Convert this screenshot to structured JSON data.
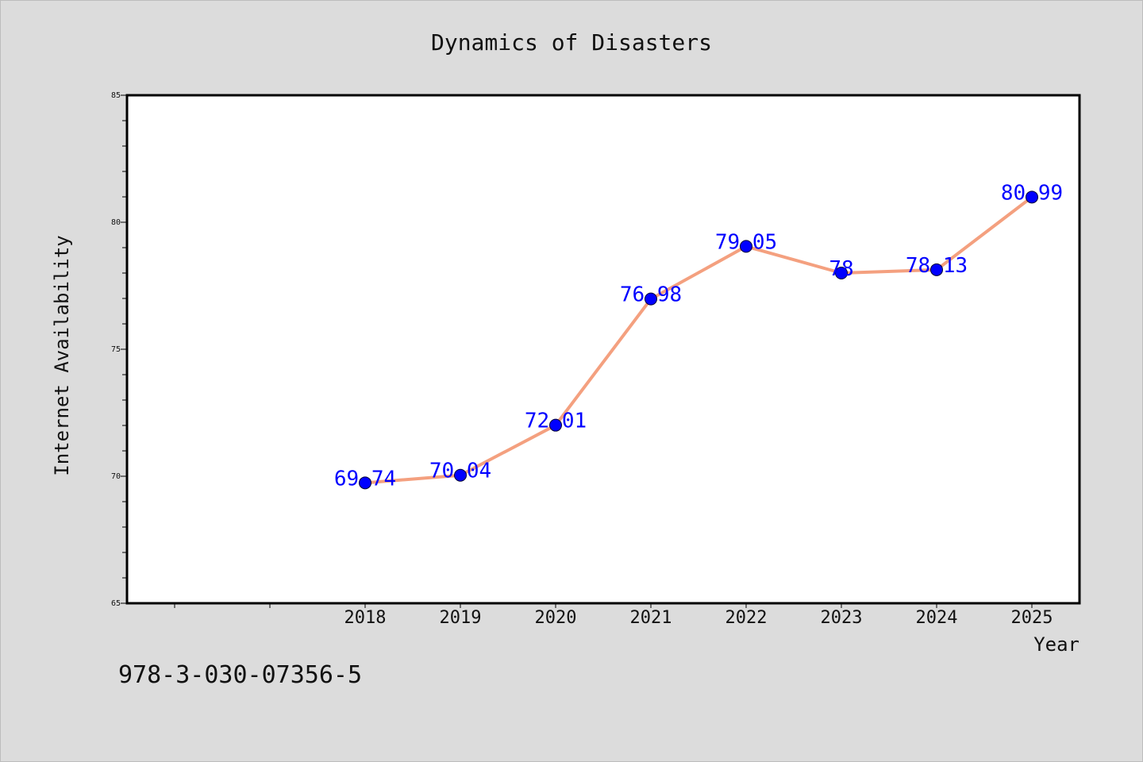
{
  "chart_data": {
    "type": "line",
    "title": "Dynamics of Disasters",
    "xlabel": "Year",
    "ylabel": "Internet Availability",
    "categories": [
      "2018",
      "2019",
      "2020",
      "2021",
      "2022",
      "2023",
      "2024",
      "2025"
    ],
    "series": [
      {
        "values": [
          69.74,
          70.04,
          72.01,
          76.98,
          79.05,
          78,
          78.13,
          80.99
        ],
        "labels": [
          "69.74",
          "70.04",
          "72.01",
          "76.98",
          "79.05",
          "78",
          "78.13",
          "80.99"
        ]
      }
    ],
    "ylim": [
      65,
      85
    ],
    "y_ticks": [
      "65",
      "70",
      "75",
      "80",
      "85"
    ],
    "grid": false,
    "legend": "none",
    "colors": {
      "line": "#f4a07f",
      "marker": "#0000ff",
      "marker_edge": "#000033",
      "data_label": "#0000ff",
      "plot_background": "#ffffff",
      "figure_background": "#dcdcdc"
    }
  },
  "footer": {
    "isbn": "978-3-030-07356-5"
  }
}
